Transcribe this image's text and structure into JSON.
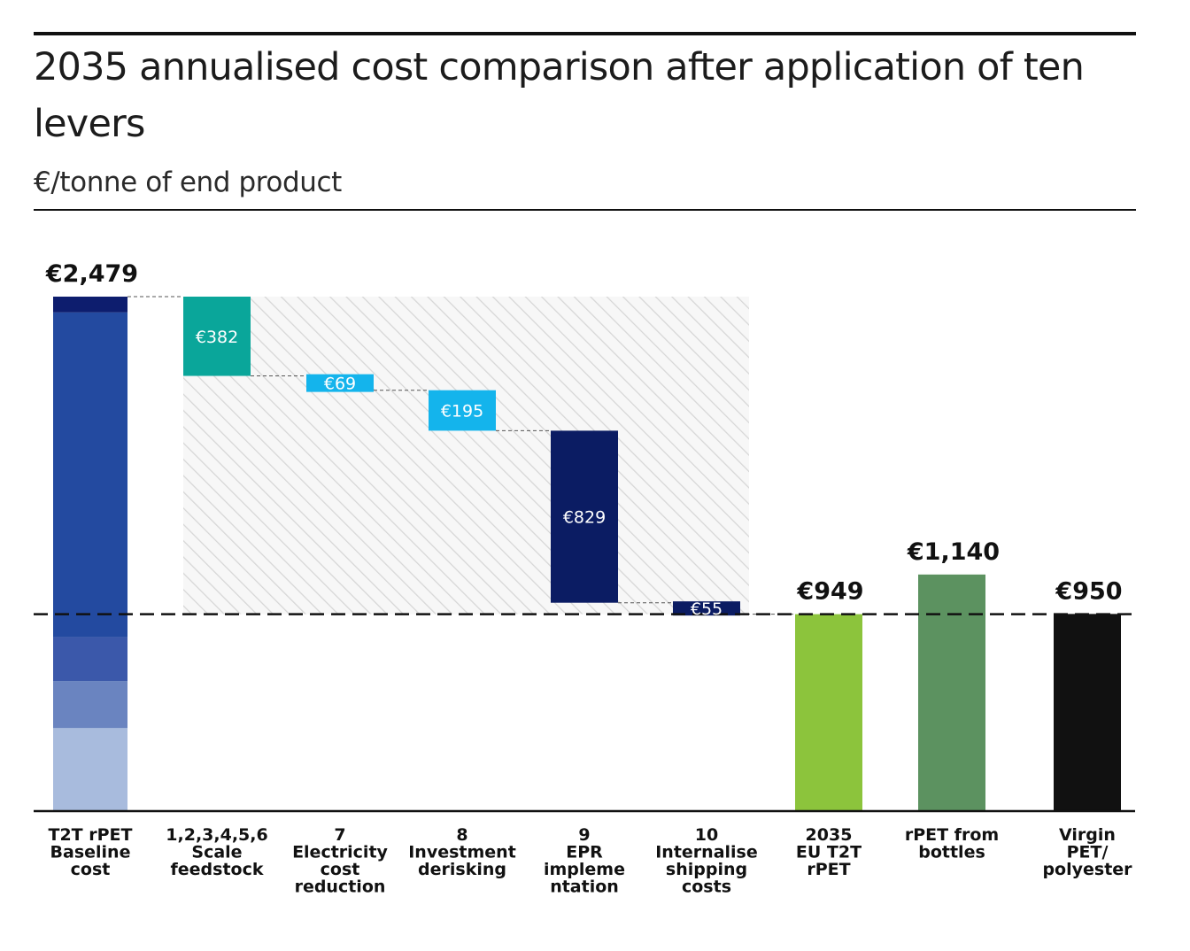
{
  "title": "2035 annualised cost comparison after application of ten levers",
  "subtitle": "€/tonne of end product",
  "chart_data": {
    "type": "bar",
    "subtype": "waterfall",
    "ylim": [
      0,
      2479
    ],
    "reference_line_value": 949,
    "grid": false,
    "categories": [
      "T2T rPET Baseline cost",
      "1,2,3,4,5,6 Scale feedstock",
      "7 Electricity cost reduction",
      "8 Investment derisking",
      "9 EPR implementation",
      "10 Internalise shipping costs",
      "2035 EU T2T rPET",
      "rPET from bottles",
      "Virgin PET/ polyester"
    ],
    "bars": [
      {
        "category_lines": [
          "T2T rPET",
          "Baseline",
          "cost"
        ],
        "kind": "total",
        "value": 2479,
        "label": "€2,479",
        "segments": [
          {
            "value": 400,
            "color": "#a8bbdd"
          },
          {
            "value": 227,
            "color": "#6a84c0"
          },
          {
            "value": 211,
            "color": "#3b58aa"
          },
          {
            "value": 1565,
            "color": "#234aa0"
          },
          {
            "value": 76,
            "color": "#0d1d6e"
          }
        ]
      },
      {
        "category_lines": [
          "1,2,3,4,5,6",
          "Scale",
          "feedstock"
        ],
        "kind": "decrease",
        "value": 382,
        "label": "€382",
        "color": "#0aa69a",
        "label_color": "#ffffff"
      },
      {
        "category_lines": [
          "7",
          "Electricity",
          "cost",
          "reduction"
        ],
        "kind": "decrease",
        "value": 69,
        "label": "€69",
        "color": "#14b4ec",
        "label_color": "#ffffff"
      },
      {
        "category_lines": [
          "8",
          "Investment",
          "derisking"
        ],
        "kind": "decrease",
        "value": 195,
        "label": "€195",
        "color": "#14b4ec",
        "label_color": "#ffffff"
      },
      {
        "category_lines": [
          "9",
          "EPR",
          "impleme",
          "ntation"
        ],
        "kind": "decrease",
        "value": 829,
        "label": "€829",
        "color": "#0b1c63",
        "label_color": "#ffffff"
      },
      {
        "category_lines": [
          "10",
          "Internalise",
          "shipping",
          "costs"
        ],
        "kind": "decrease",
        "value": 55,
        "label": "€55",
        "color": "#0b1c63",
        "label_color": "#ffffff"
      },
      {
        "category_lines": [
          "2035",
          "EU T2T",
          "rPET"
        ],
        "kind": "total",
        "value": 949,
        "label": "€949",
        "color": "#8cc43c"
      },
      {
        "category_lines": [
          "rPET from",
          "bottles"
        ],
        "kind": "total",
        "value": 1140,
        "label": "€1,140",
        "color": "#5c9260"
      },
      {
        "category_lines": [
          "Virgin",
          "PET/",
          "polyester"
        ],
        "kind": "total",
        "value": 950,
        "label": "€950",
        "color": "#111111"
      }
    ]
  }
}
